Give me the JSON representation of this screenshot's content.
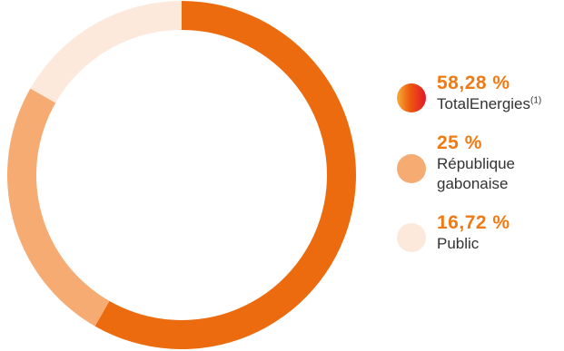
{
  "chart_data": {
    "type": "pie",
    "title": "",
    "slices": [
      {
        "value": 58.28,
        "value_label": "58,28 %",
        "label": "TotalEnergies",
        "note": "(1)",
        "color": "#ec6b0f",
        "color_light": "#f5ad36"
      },
      {
        "value": 25,
        "value_label": "25 %",
        "label": "République\ngabonaise",
        "note": "",
        "color": "#f5ab72"
      },
      {
        "value": 16.72,
        "value_label": "16,72 %",
        "label": "Public",
        "note": "",
        "color": "#fde9dc"
      }
    ],
    "legend_position": "right",
    "style": "donut"
  }
}
